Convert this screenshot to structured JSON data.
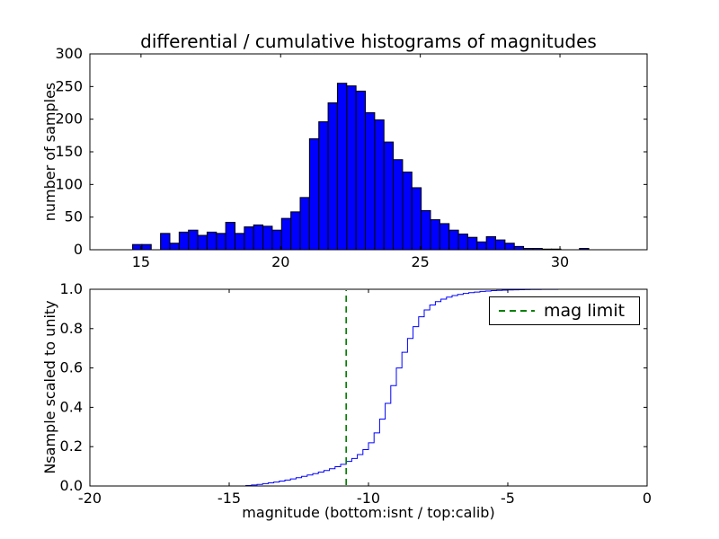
{
  "figure": {
    "title": "differential / cumulative histograms of magnitudes",
    "background": "#ffffff"
  },
  "chart_data": [
    {
      "id": "differential-histogram",
      "type": "bar",
      "title": "differential / cumulative histograms of magnitudes",
      "xlabel": "",
      "ylabel": "number of samples",
      "xlim": [
        13.17,
        33.12
      ],
      "ylim": [
        0,
        300
      ],
      "xticks": [
        15,
        20,
        25,
        30
      ],
      "xtick_labels": [
        "15",
        "20",
        "25",
        "30"
      ],
      "yticks": [
        0,
        50,
        100,
        150,
        200,
        250,
        300
      ],
      "ytick_labels": [
        "0",
        "50",
        "100",
        "150",
        "200",
        "250",
        "300"
      ],
      "grid": false,
      "bar_color": "#0000ff",
      "edge_color": "#000000",
      "bin_start": 14.7,
      "bin_width": 0.3333,
      "values": [
        8,
        8,
        0,
        25,
        10,
        27,
        30,
        22,
        27,
        25,
        42,
        25,
        35,
        38,
        36,
        30,
        48,
        58,
        80,
        170,
        196,
        225,
        255,
        251,
        243,
        210,
        199,
        165,
        138,
        119,
        95,
        60,
        46,
        40,
        30,
        24,
        19,
        12,
        20,
        15,
        10,
        5,
        2,
        2,
        1,
        1,
        0,
        0,
        2
      ]
    },
    {
      "id": "cumulative-histogram",
      "type": "line",
      "style": "step",
      "title": "",
      "xlabel": "magnitude (bottom:isnt / top:calib)",
      "ylabel": "Nsample scaled to unity",
      "xlim": [
        -20,
        0
      ],
      "ylim": [
        0.0,
        1.0
      ],
      "xticks": [
        -20,
        -15,
        -10,
        -5,
        0
      ],
      "xtick_labels": [
        "-20",
        "-15",
        "-10",
        "-5",
        "0"
      ],
      "yticks": [
        0.0,
        0.2,
        0.4,
        0.6,
        0.8,
        1.0
      ],
      "ytick_labels": [
        "0.0",
        "0.2",
        "0.4",
        "0.6",
        "0.8",
        "1.0"
      ],
      "grid": false,
      "line_color": "#0000ff",
      "x": [
        -14.6,
        -14.4,
        -14.2,
        -14.0,
        -13.8,
        -13.6,
        -13.4,
        -13.2,
        -13.0,
        -12.8,
        -12.6,
        -12.4,
        -12.2,
        -12.0,
        -11.8,
        -11.6,
        -11.4,
        -11.2,
        -11.0,
        -10.8,
        -10.6,
        -10.4,
        -10.2,
        -10.0,
        -9.8,
        -9.6,
        -9.4,
        -9.2,
        -9.0,
        -8.8,
        -8.6,
        -8.4,
        -8.2,
        -8.0,
        -7.8,
        -7.6,
        -7.4,
        -7.2,
        -7.0,
        -6.8,
        -6.6,
        -6.4,
        -6.2,
        -6.0,
        -5.8,
        -5.6,
        -5.4,
        -5.2,
        -5.0,
        -4.8,
        -4.6,
        -4.4,
        -4.2,
        -4.0,
        -3.8,
        -3.6,
        -3.4,
        -3.2,
        -3.0,
        -2.8,
        -2.0
      ],
      "y": [
        0.0,
        0.002,
        0.005,
        0.008,
        0.012,
        0.016,
        0.02,
        0.025,
        0.03,
        0.036,
        0.042,
        0.049,
        0.056,
        0.063,
        0.071,
        0.079,
        0.088,
        0.098,
        0.11,
        0.125,
        0.14,
        0.16,
        0.185,
        0.22,
        0.27,
        0.34,
        0.42,
        0.51,
        0.6,
        0.68,
        0.75,
        0.81,
        0.86,
        0.895,
        0.92,
        0.937,
        0.95,
        0.96,
        0.968,
        0.974,
        0.979,
        0.983,
        0.986,
        0.989,
        0.991,
        0.993,
        0.9945,
        0.9955,
        0.9965,
        0.9972,
        0.9978,
        0.9984,
        0.9988,
        0.9991,
        0.9994,
        0.9996,
        0.9997,
        0.9998,
        0.9999,
        1.0,
        1.0
      ],
      "vline": {
        "x": -10.8,
        "color": "#008000",
        "dash": true,
        "label": "mag limit"
      },
      "legend": {
        "position": "upper right",
        "entries": [
          {
            "label": "mag limit",
            "color": "#008000",
            "dash": true
          }
        ]
      }
    }
  ]
}
